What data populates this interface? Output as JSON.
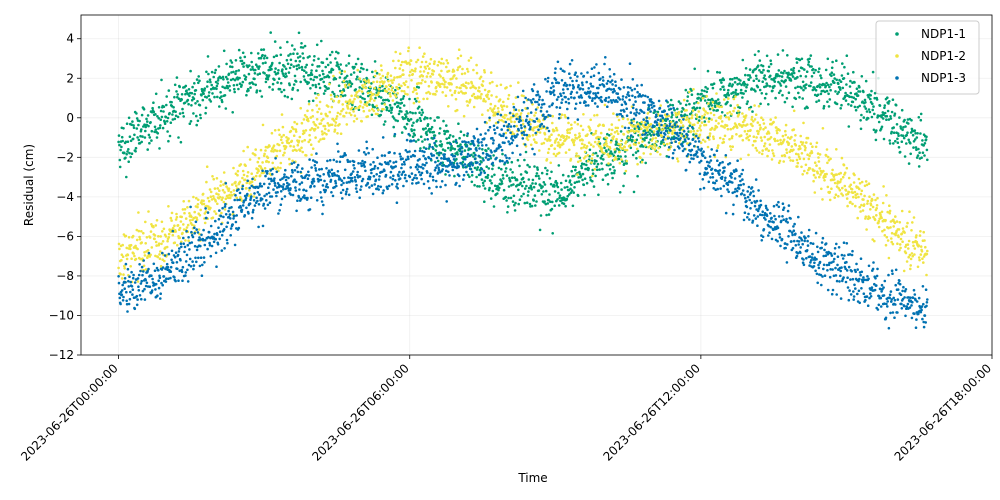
{
  "chart_data": {
    "type": "scatter",
    "title": "",
    "xlabel": "Time",
    "ylabel": "Residual (cm)",
    "x_type": "datetime",
    "xlim": [
      "2023-06-25T23:13:30",
      "2023-06-26T18:00:00"
    ],
    "ylim": [
      -12,
      5.2
    ],
    "x_ticks": [
      "2023-06-26T00:00",
      "2023-06-26T06:00",
      "2023-06-26T12:00",
      "2023-06-26T18:00"
    ],
    "x_tick_labels": [
      "2023-06-26T00:00:00",
      "2023-06-26T06:00:00",
      "2023-06-26T12:00:00",
      "2023-06-26T18:00:00"
    ],
    "y_ticks": [
      -12,
      -10,
      -8,
      -6,
      -4,
      -2,
      0,
      2,
      4
    ],
    "y_tick_labels": [
      "−12",
      "−10",
      "−8",
      "−6",
      "−4",
      "−2",
      "0",
      "2",
      "4"
    ],
    "grid": true,
    "legend_position": "top-right",
    "series": [
      {
        "name": "NDP1-1",
        "color": "#009e73",
        "approx_points": 2000,
        "x": [
          "2023-06-26T00:00",
          "2023-06-26T01:00",
          "2023-06-26T02:00",
          "2023-06-26T03:00",
          "2023-06-26T04:00",
          "2023-06-26T05:00",
          "2023-06-26T06:00",
          "2023-06-26T07:00",
          "2023-06-26T08:00",
          "2023-06-26T09:00",
          "2023-06-26T10:00",
          "2023-06-26T11:00",
          "2023-06-26T12:00",
          "2023-06-26T13:00",
          "2023-06-26T14:00",
          "2023-06-26T15:00",
          "2023-06-26T16:00",
          "2023-06-26T16:40"
        ],
        "values": [
          -1.3,
          0.2,
          1.6,
          2.5,
          2.4,
          1.5,
          0.0,
          -1.8,
          -3.4,
          -3.8,
          -2.2,
          -0.8,
          0.8,
          1.8,
          2.0,
          1.3,
          -0.3,
          -1.4
        ]
      },
      {
        "name": "NDP1-2",
        "color": "#f0e442",
        "approx_points": 2000,
        "x": [
          "2023-06-26T00:00",
          "2023-06-26T01:00",
          "2023-06-26T02:00",
          "2023-06-26T03:00",
          "2023-06-26T04:00",
          "2023-06-26T05:00",
          "2023-06-26T06:00",
          "2023-06-26T07:00",
          "2023-06-26T08:00",
          "2023-06-26T09:00",
          "2023-06-26T10:00",
          "2023-06-26T11:00",
          "2023-06-26T12:00",
          "2023-06-26T13:00",
          "2023-06-26T14:00",
          "2023-06-26T15:00",
          "2023-06-26T16:00",
          "2023-06-26T16:40"
        ],
        "values": [
          -7.2,
          -6.0,
          -4.1,
          -2.2,
          -0.5,
          1.0,
          2.2,
          2.0,
          0.3,
          -1.0,
          -1.2,
          -0.8,
          -0.3,
          -0.5,
          -1.6,
          -3.6,
          -5.8,
          -6.8
        ]
      },
      {
        "name": "NDP1-3",
        "color": "#0072b2",
        "approx_points": 2000,
        "x": [
          "2023-06-26T00:00",
          "2023-06-26T01:00",
          "2023-06-26T02:00",
          "2023-06-26T03:00",
          "2023-06-26T04:00",
          "2023-06-26T05:00",
          "2023-06-26T06:00",
          "2023-06-26T07:00",
          "2023-06-26T08:00",
          "2023-06-26T09:00",
          "2023-06-26T10:00",
          "2023-06-26T11:00",
          "2023-06-26T12:00",
          "2023-06-26T13:00",
          "2023-06-26T14:00",
          "2023-06-26T15:00",
          "2023-06-26T16:00",
          "2023-06-26T16:40"
        ],
        "values": [
          -9.0,
          -7.8,
          -5.8,
          -3.7,
          -3.2,
          -2.9,
          -2.5,
          -2.3,
          -1.0,
          1.2,
          1.6,
          0.2,
          -2.0,
          -4.2,
          -6.2,
          -8.0,
          -9.2,
          -9.7
        ]
      }
    ]
  }
}
